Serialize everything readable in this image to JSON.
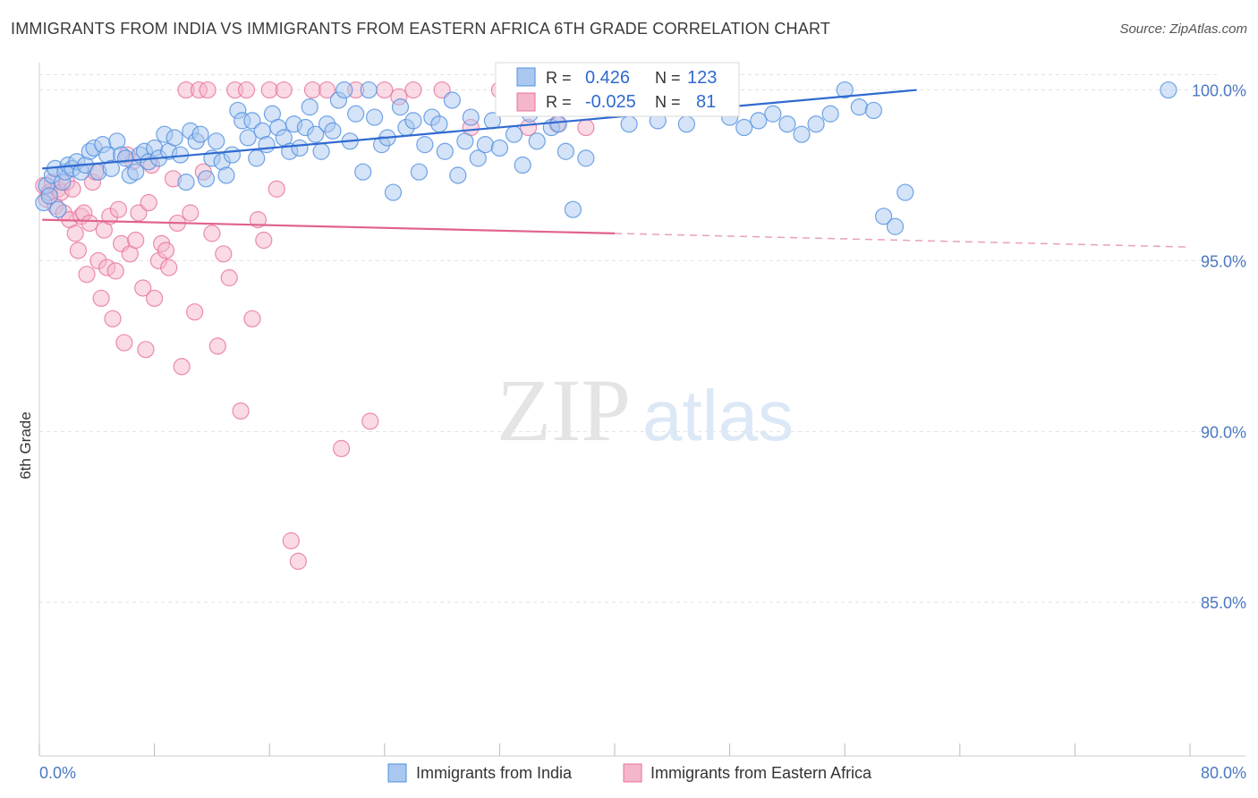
{
  "title": "IMMIGRANTS FROM INDIA VS IMMIGRANTS FROM EASTERN AFRICA 6TH GRADE CORRELATION CHART",
  "source": "Source: ZipAtlas.com",
  "watermark": {
    "zip": "ZIP",
    "atlas": "atlas"
  },
  "colors": {
    "india": "#4f8fe0",
    "india_fill": "#aac8ef",
    "eafrica": "#e8709b",
    "eafrica_fill": "#f3b6cb",
    "grid": "#e2e2e2",
    "axis_label": "#4a78c2"
  },
  "stats": {
    "india": {
      "r_label": "R =",
      "r_value": "0.426",
      "n_label": "N =",
      "n_value": "123"
    },
    "eafrica": {
      "r_label": "R =",
      "r_value": "-0.025",
      "n_label": "N =",
      "n_value": "81"
    }
  },
  "chart_data": {
    "type": "scatter",
    "title": "IMMIGRANTS FROM INDIA VS IMMIGRANTS FROM EASTERN AFRICA 6TH GRADE CORRELATION CHART",
    "xlabel": "",
    "ylabel": "6th Grade",
    "xlim": [
      0,
      80
    ],
    "ylim": [
      80.5,
      100.8
    ],
    "x_tick_labels": [
      "0.0%",
      "80.0%"
    ],
    "y_ticks": [
      100,
      95,
      90,
      85
    ],
    "y_tick_labels": [
      "100.0%",
      "95.0%",
      "90.0%",
      "85.0%"
    ],
    "grid": true,
    "legend_position": "bottom",
    "series": [
      {
        "name": "Immigrants from India",
        "trend": {
          "x": [
            0.2,
            61
          ],
          "y": [
            97.7,
            100.0
          ]
        },
        "points": [
          [
            0.3,
            96.7
          ],
          [
            0.5,
            97.2
          ],
          [
            0.7,
            96.9
          ],
          [
            0.9,
            97.5
          ],
          [
            1.1,
            97.7
          ],
          [
            1.3,
            96.5
          ],
          [
            1.6,
            97.3
          ],
          [
            1.8,
            97.6
          ],
          [
            2.0,
            97.8
          ],
          [
            2.3,
            97.7
          ],
          [
            2.6,
            97.9
          ],
          [
            2.9,
            97.6
          ],
          [
            3.2,
            97.8
          ],
          [
            3.5,
            98.2
          ],
          [
            3.8,
            98.3
          ],
          [
            4.1,
            97.6
          ],
          [
            4.4,
            98.4
          ],
          [
            4.7,
            98.1
          ],
          [
            5.0,
            97.7
          ],
          [
            5.4,
            98.5
          ],
          [
            5.7,
            98.1
          ],
          [
            6.0,
            98.0
          ],
          [
            6.3,
            97.5
          ],
          [
            6.7,
            97.6
          ],
          [
            7.0,
            98.1
          ],
          [
            7.3,
            98.2
          ],
          [
            7.6,
            97.9
          ],
          [
            8.0,
            98.3
          ],
          [
            8.3,
            98.0
          ],
          [
            8.7,
            98.7
          ],
          [
            9.0,
            98.2
          ],
          [
            9.4,
            98.6
          ],
          [
            9.8,
            98.1
          ],
          [
            10.2,
            97.3
          ],
          [
            10.5,
            98.8
          ],
          [
            10.9,
            98.5
          ],
          [
            11.2,
            98.7
          ],
          [
            11.6,
            97.4
          ],
          [
            12.0,
            98.0
          ],
          [
            12.3,
            98.5
          ],
          [
            12.7,
            97.9
          ],
          [
            13.0,
            97.5
          ],
          [
            13.4,
            98.1
          ],
          [
            13.8,
            99.4
          ],
          [
            14.1,
            99.1
          ],
          [
            14.5,
            98.6
          ],
          [
            14.8,
            99.1
          ],
          [
            15.1,
            98.0
          ],
          [
            15.5,
            98.8
          ],
          [
            15.8,
            98.4
          ],
          [
            16.2,
            99.3
          ],
          [
            16.6,
            98.9
          ],
          [
            17.0,
            98.6
          ],
          [
            17.4,
            98.2
          ],
          [
            17.7,
            99.0
          ],
          [
            18.1,
            98.3
          ],
          [
            18.5,
            98.9
          ],
          [
            18.8,
            99.5
          ],
          [
            19.2,
            98.7
          ],
          [
            19.6,
            98.2
          ],
          [
            20.0,
            99.0
          ],
          [
            20.4,
            98.8
          ],
          [
            20.8,
            99.7
          ],
          [
            21.2,
            100.0
          ],
          [
            21.6,
            98.5
          ],
          [
            22.0,
            99.3
          ],
          [
            22.5,
            97.6
          ],
          [
            22.9,
            100.0
          ],
          [
            23.3,
            99.2
          ],
          [
            23.8,
            98.4
          ],
          [
            24.2,
            98.6
          ],
          [
            24.6,
            97.0
          ],
          [
            25.1,
            99.5
          ],
          [
            25.5,
            98.9
          ],
          [
            26.0,
            99.1
          ],
          [
            26.4,
            97.6
          ],
          [
            26.8,
            98.4
          ],
          [
            27.3,
            99.2
          ],
          [
            27.8,
            99.0
          ],
          [
            28.2,
            98.2
          ],
          [
            28.7,
            99.7
          ],
          [
            29.1,
            97.5
          ],
          [
            29.6,
            98.5
          ],
          [
            30.0,
            99.2
          ],
          [
            30.5,
            98.0
          ],
          [
            31.0,
            98.4
          ],
          [
            31.5,
            99.1
          ],
          [
            32.0,
            98.3
          ],
          [
            32.5,
            99.5
          ],
          [
            33.0,
            98.7
          ],
          [
            33.6,
            97.8
          ],
          [
            34.1,
            99.3
          ],
          [
            34.6,
            98.5
          ],
          [
            35.1,
            99.6
          ],
          [
            35.6,
            98.9
          ],
          [
            36.1,
            99.0
          ],
          [
            36.6,
            98.2
          ],
          [
            37.1,
            96.5
          ],
          [
            38.0,
            98.0
          ],
          [
            39.0,
            99.7
          ],
          [
            40.0,
            100.0
          ],
          [
            41.0,
            99.0
          ],
          [
            42.0,
            100.0
          ],
          [
            43.0,
            99.1
          ],
          [
            44.0,
            100.0
          ],
          [
            45.0,
            99.0
          ],
          [
            46.0,
            100.0
          ],
          [
            47.0,
            99.9
          ],
          [
            48.0,
            99.2
          ],
          [
            49.0,
            98.9
          ],
          [
            50.0,
            99.1
          ],
          [
            51.0,
            99.3
          ],
          [
            52.0,
            99.0
          ],
          [
            53.0,
            98.7
          ],
          [
            54.0,
            99.0
          ],
          [
            55.0,
            99.3
          ],
          [
            56.0,
            100.0
          ],
          [
            57.0,
            99.5
          ],
          [
            58.0,
            99.4
          ],
          [
            78.5,
            100.0
          ],
          [
            58.7,
            96.3
          ],
          [
            59.5,
            96.0
          ],
          [
            60.2,
            97.0
          ]
        ]
      },
      {
        "name": "Immigrants from Eastern Africa",
        "trend": {
          "x": [
            0.2,
            40
          ],
          "y": [
            96.2,
            95.8
          ]
        },
        "trend_dashed": {
          "x": [
            40,
            80
          ],
          "y": [
            95.8,
            95.4
          ]
        },
        "points": [
          [
            0.3,
            97.2
          ],
          [
            0.5,
            96.8
          ],
          [
            0.7,
            97.0
          ],
          [
            0.9,
            97.3
          ],
          [
            1.1,
            96.6
          ],
          [
            1.3,
            97.1
          ],
          [
            1.5,
            97.0
          ],
          [
            1.7,
            96.4
          ],
          [
            1.9,
            97.3
          ],
          [
            2.1,
            96.2
          ],
          [
            2.3,
            97.1
          ],
          [
            2.5,
            95.8
          ],
          [
            2.7,
            95.3
          ],
          [
            2.9,
            96.3
          ],
          [
            3.1,
            96.4
          ],
          [
            3.3,
            94.6
          ],
          [
            3.5,
            96.1
          ],
          [
            3.7,
            97.3
          ],
          [
            3.9,
            97.6
          ],
          [
            4.1,
            95.0
          ],
          [
            4.3,
            93.9
          ],
          [
            4.5,
            95.9
          ],
          [
            4.7,
            94.8
          ],
          [
            4.9,
            96.3
          ],
          [
            5.1,
            93.3
          ],
          [
            5.3,
            94.7
          ],
          [
            5.5,
            96.5
          ],
          [
            5.7,
            95.5
          ],
          [
            5.9,
            92.6
          ],
          [
            6.1,
            98.1
          ],
          [
            6.3,
            95.2
          ],
          [
            6.5,
            97.9
          ],
          [
            6.7,
            95.6
          ],
          [
            6.9,
            96.4
          ],
          [
            7.2,
            94.2
          ],
          [
            7.4,
            92.4
          ],
          [
            7.6,
            96.7
          ],
          [
            7.8,
            97.8
          ],
          [
            8.0,
            93.9
          ],
          [
            8.3,
            95.0
          ],
          [
            8.5,
            95.5
          ],
          [
            8.8,
            95.3
          ],
          [
            9.0,
            94.8
          ],
          [
            9.3,
            97.4
          ],
          [
            9.6,
            96.1
          ],
          [
            9.9,
            91.9
          ],
          [
            10.2,
            100.0
          ],
          [
            10.5,
            96.4
          ],
          [
            10.8,
            93.5
          ],
          [
            11.1,
            100.0
          ],
          [
            11.4,
            97.6
          ],
          [
            11.7,
            100.0
          ],
          [
            12.0,
            95.8
          ],
          [
            12.4,
            92.5
          ],
          [
            12.8,
            95.2
          ],
          [
            13.2,
            94.5
          ],
          [
            13.6,
            100.0
          ],
          [
            14.0,
            90.6
          ],
          [
            14.4,
            100.0
          ],
          [
            14.8,
            93.3
          ],
          [
            15.2,
            96.2
          ],
          [
            15.6,
            95.6
          ],
          [
            16.0,
            100.0
          ],
          [
            16.5,
            97.1
          ],
          [
            17.0,
            100.0
          ],
          [
            17.5,
            86.8
          ],
          [
            18.0,
            86.2
          ],
          [
            19.0,
            100.0
          ],
          [
            20.0,
            100.0
          ],
          [
            21.0,
            89.5
          ],
          [
            22.0,
            100.0
          ],
          [
            23.0,
            90.3
          ],
          [
            24.0,
            100.0
          ],
          [
            25.0,
            99.8
          ],
          [
            26.0,
            100.0
          ],
          [
            28.0,
            100.0
          ],
          [
            30.0,
            98.9
          ],
          [
            32.0,
            100.0
          ],
          [
            34.0,
            98.9
          ],
          [
            36.0,
            99.0
          ],
          [
            38.0,
            98.9
          ]
        ]
      }
    ]
  },
  "legend": {
    "india_label": "Immigrants from India",
    "eafrica_label": "Immigrants from Eastern Africa"
  }
}
